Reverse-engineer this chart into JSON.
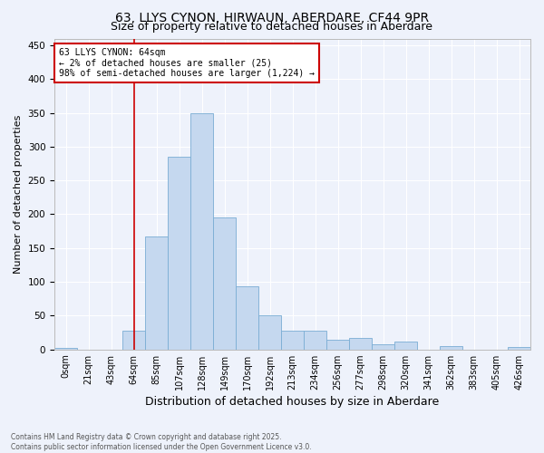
{
  "title_line1": "63, LLYS CYNON, HIRWAUN, ABERDARE, CF44 9PR",
  "title_line2": "Size of property relative to detached houses in Aberdare",
  "xlabel": "Distribution of detached houses by size in Aberdare",
  "ylabel": "Number of detached properties",
  "categories": [
    "0sqm",
    "21sqm",
    "43sqm",
    "64sqm",
    "85sqm",
    "107sqm",
    "128sqm",
    "149sqm",
    "170sqm",
    "192sqm",
    "213sqm",
    "234sqm",
    "256sqm",
    "277sqm",
    "298sqm",
    "320sqm",
    "341sqm",
    "362sqm",
    "383sqm",
    "405sqm",
    "426sqm"
  ],
  "values": [
    2,
    0,
    0,
    28,
    167,
    285,
    350,
    195,
    93,
    50,
    28,
    28,
    14,
    17,
    8,
    11,
    0,
    5,
    0,
    0,
    4
  ],
  "bar_color": "#c5d8ef",
  "bar_edge_color": "#7aadd4",
  "vline_x": 3,
  "vline_color": "#cc0000",
  "annotation_text": "63 LLYS CYNON: 64sqm\n← 2% of detached houses are smaller (25)\n98% of semi-detached houses are larger (1,224) →",
  "annotation_box_color": "#ffffff",
  "annotation_box_edge_color": "#cc0000",
  "ylim": [
    0,
    460
  ],
  "yticks": [
    0,
    50,
    100,
    150,
    200,
    250,
    300,
    350,
    400,
    450
  ],
  "footnote": "Contains HM Land Registry data © Crown copyright and database right 2025.\nContains public sector information licensed under the Open Government Licence v3.0.",
  "background_color": "#eef2fb",
  "grid_color": "#ffffff",
  "title_fontsize": 10,
  "subtitle_fontsize": 9,
  "tick_fontsize": 7,
  "ylabel_fontsize": 8,
  "xlabel_fontsize": 9,
  "footnote_fontsize": 5.5
}
